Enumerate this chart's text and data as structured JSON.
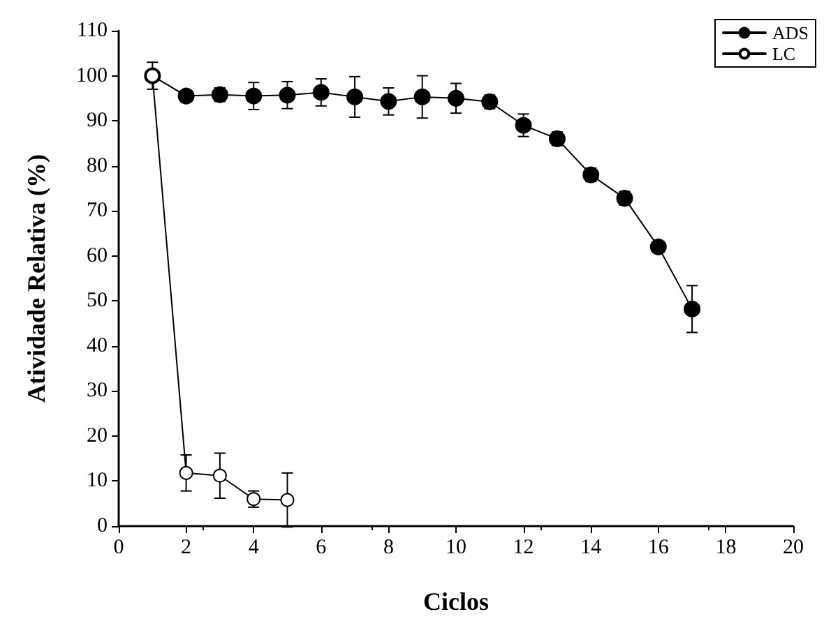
{
  "chart_data": {
    "type": "line",
    "xlabel": "Ciclos",
    "ylabel": "Atividade Relativa (%)",
    "xlim": [
      0,
      20
    ],
    "xticks": [
      0,
      2,
      4,
      6,
      8,
      10,
      12,
      14,
      16,
      18,
      20
    ],
    "ylim": [
      0,
      110
    ],
    "yticks": [
      0,
      10,
      20,
      30,
      40,
      50,
      60,
      70,
      80,
      90,
      100,
      110
    ],
    "grid": false,
    "legend": "top right",
    "line_style": "solid",
    "series": [
      {
        "name": "ADS",
        "color": "#000000",
        "marker": "circle",
        "x": [
          1,
          2,
          3,
          4,
          5,
          6,
          7,
          8,
          9,
          10,
          11,
          12,
          13,
          14,
          15,
          16,
          17
        ],
        "values": [
          100,
          95.5,
          95.8,
          95.5,
          95.7,
          96.3,
          95.3,
          94.3,
          95.3,
          95,
          94.2,
          89,
          86,
          78,
          72.8,
          62,
          48.2
        ],
        "errors": [
          null,
          0.8,
          1.5,
          3,
          3,
          3,
          4.5,
          3,
          4.7,
          3.3,
          1.5,
          2.5,
          1.5,
          1.5,
          1.5,
          1,
          5.2
        ]
      },
      {
        "name": "LC",
        "color": "#ffffff",
        "marker": "circle",
        "x": [
          1,
          2,
          3,
          4,
          5
        ],
        "values": [
          100,
          11.8,
          11.2,
          6,
          5.8
        ],
        "errors": [
          3,
          4,
          5,
          1.8,
          6
        ]
      }
    ]
  }
}
